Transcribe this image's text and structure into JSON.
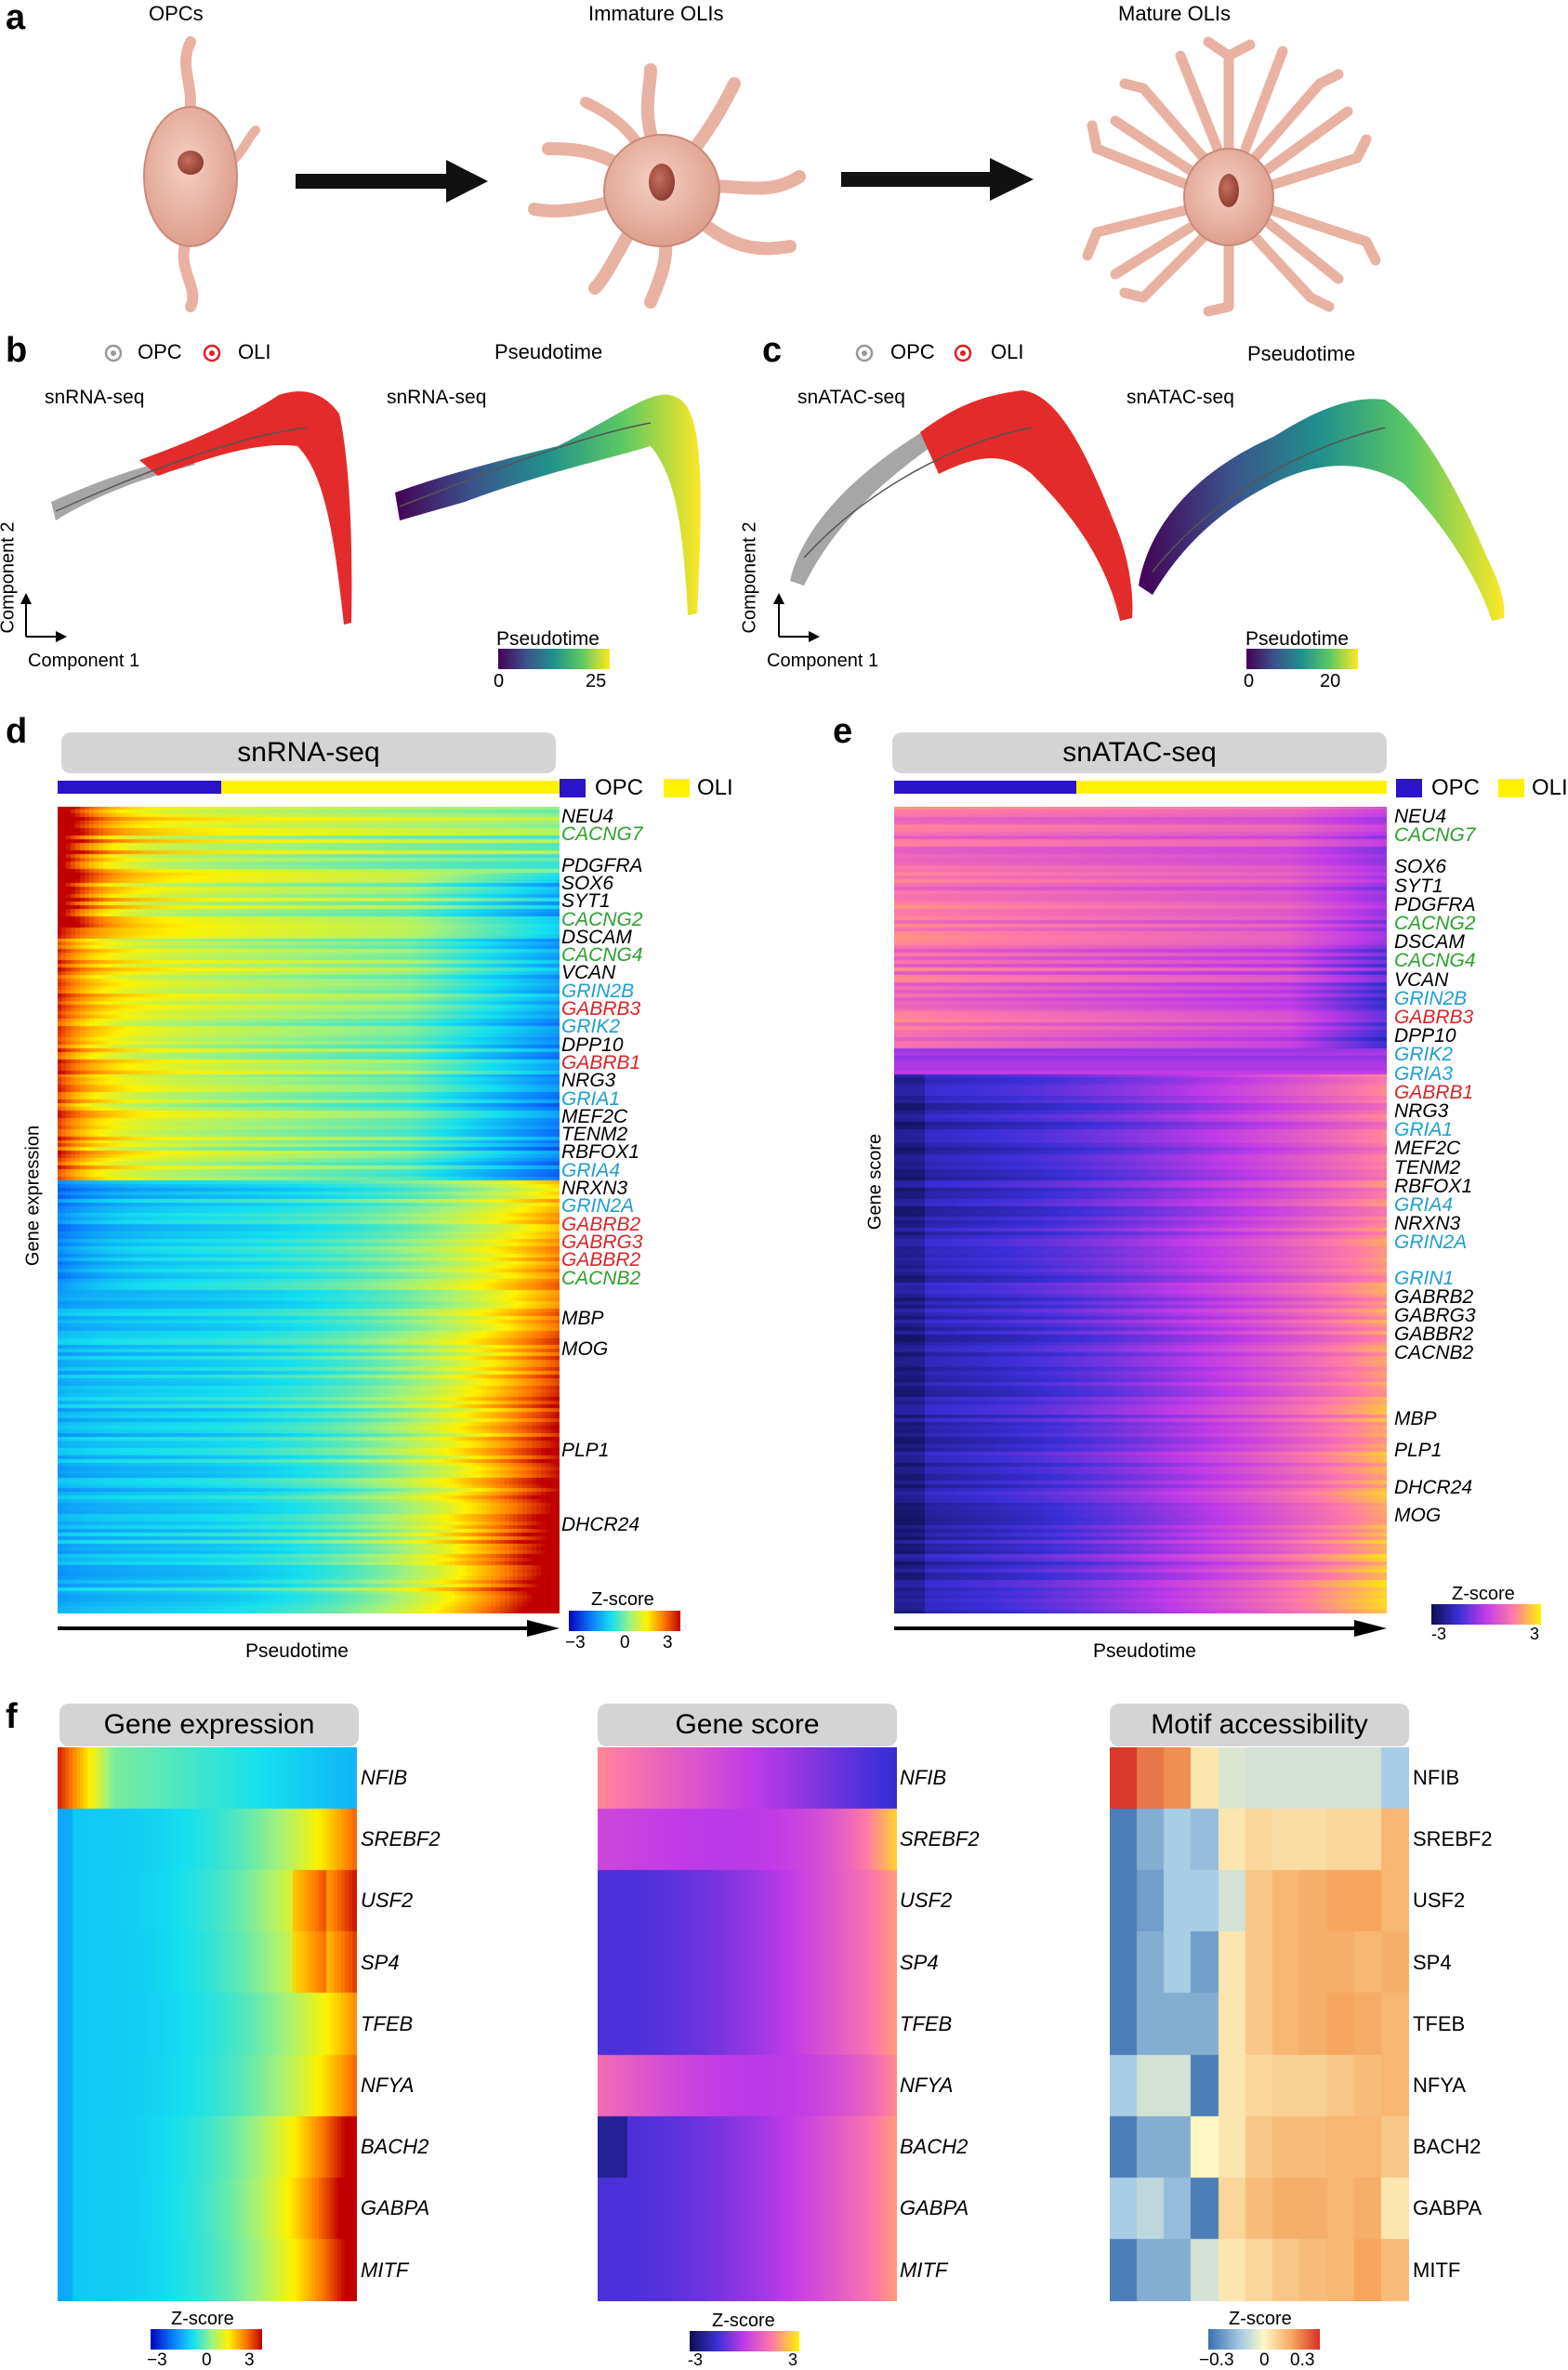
{
  "panel_a": {
    "label": "a",
    "stages": [
      "OPCs",
      "Immature OLIs",
      "Mature OLIs"
    ]
  },
  "panel_b": {
    "label": "b",
    "legend": {
      "opc": "OPC",
      "oli": "OLI"
    },
    "left_title": "snRNA-seq",
    "right_header": "Pseudotime",
    "right_title": "snRNA-seq",
    "axis_x": "Component 1",
    "axis_y": "Component 2",
    "colorbar": {
      "title": "Pseudotime",
      "min": "0",
      "max": "25"
    }
  },
  "panel_c": {
    "label": "c",
    "legend": {
      "opc": "OPC",
      "oli": "OLI"
    },
    "left_title": "snATAC-seq",
    "right_header": "Pseudotime",
    "right_title": "snATAC-seq",
    "axis_x": "Component 1",
    "axis_y": "Component 2",
    "colorbar": {
      "title": "Pseudotime",
      "min": "0",
      "max": "20"
    }
  },
  "panel_d": {
    "label": "d",
    "title": "snRNA-seq",
    "legend": {
      "opc": "OPC",
      "oli": "OLI"
    },
    "y_label": "Gene expression",
    "x_label": "Pseudotime",
    "colorbar": {
      "title": "Z-score",
      "min": "−3",
      "mid": "0",
      "max": "3"
    },
    "genes": [
      {
        "name": "NEU4",
        "color": "#000000"
      },
      {
        "name": "CACNG7",
        "color": "#2ca02c"
      },
      {
        "name": "PDGFRA",
        "color": "#000000"
      },
      {
        "name": "SOX6",
        "color": "#000000"
      },
      {
        "name": "SYT1",
        "color": "#000000"
      },
      {
        "name": "CACNG2",
        "color": "#2ca02c"
      },
      {
        "name": "DSCAM",
        "color": "#000000"
      },
      {
        "name": "CACNG4",
        "color": "#2ca02c"
      },
      {
        "name": "VCAN",
        "color": "#000000"
      },
      {
        "name": "GRIN2B",
        "color": "#1f9fd0"
      },
      {
        "name": "GABRB3",
        "color": "#d62728"
      },
      {
        "name": "GRIK2",
        "color": "#1f9fd0"
      },
      {
        "name": "DPP10",
        "color": "#000000"
      },
      {
        "name": "GABRB1",
        "color": "#d62728"
      },
      {
        "name": "NRG3",
        "color": "#000000"
      },
      {
        "name": "GRIA1",
        "color": "#1f9fd0"
      },
      {
        "name": "MEF2C",
        "color": "#000000"
      },
      {
        "name": "TENM2",
        "color": "#000000"
      },
      {
        "name": "RBFOX1",
        "color": "#000000"
      },
      {
        "name": "GRIA4",
        "color": "#1f9fd0"
      },
      {
        "name": "NRXN3",
        "color": "#000000"
      },
      {
        "name": "GRIN2A",
        "color": "#1f9fd0"
      },
      {
        "name": "GABRB2",
        "color": "#d62728"
      },
      {
        "name": "GABRG3",
        "color": "#d62728"
      },
      {
        "name": "GABBR2",
        "color": "#d62728"
      },
      {
        "name": "CACNB2",
        "color": "#2ca02c"
      },
      {
        "name": "MBP",
        "color": "#000000"
      },
      {
        "name": "MOG",
        "color": "#000000"
      },
      {
        "name": "PLP1",
        "color": "#000000"
      },
      {
        "name": "DHCR24",
        "color": "#000000"
      }
    ]
  },
  "panel_e": {
    "label": "e",
    "title": "snATAC-seq",
    "legend": {
      "opc": "OPC",
      "oli": "OLI"
    },
    "y_label": "Gene score",
    "x_label": "Pseudotime",
    "colorbar": {
      "title": "Z-score",
      "min": "-3",
      "max": "3"
    },
    "genes": [
      {
        "name": "NEU4",
        "color": "#000000"
      },
      {
        "name": "CACNG7",
        "color": "#2ca02c"
      },
      {
        "name": "SOX6",
        "color": "#000000"
      },
      {
        "name": "SYT1",
        "color": "#000000"
      },
      {
        "name": "PDGFRA",
        "color": "#000000"
      },
      {
        "name": "CACNG2",
        "color": "#2ca02c"
      },
      {
        "name": "DSCAM",
        "color": "#000000"
      },
      {
        "name": "CACNG4",
        "color": "#2ca02c"
      },
      {
        "name": "VCAN",
        "color": "#000000"
      },
      {
        "name": "GRIN2B",
        "color": "#1f9fd0"
      },
      {
        "name": "GABRB3",
        "color": "#d62728"
      },
      {
        "name": "DPP10",
        "color": "#000000"
      },
      {
        "name": "GRIK2",
        "color": "#1f9fd0"
      },
      {
        "name": "GRIA3",
        "color": "#1f9fd0"
      },
      {
        "name": "GABRB1",
        "color": "#d62728"
      },
      {
        "name": "NRG3",
        "color": "#000000"
      },
      {
        "name": "GRIA1",
        "color": "#1f9fd0"
      },
      {
        "name": "MEF2C",
        "color": "#000000"
      },
      {
        "name": "TENM2",
        "color": "#000000"
      },
      {
        "name": "RBFOX1",
        "color": "#000000"
      },
      {
        "name": "GRIA4",
        "color": "#1f9fd0"
      },
      {
        "name": "NRXN3",
        "color": "#000000"
      },
      {
        "name": "GRIN2A",
        "color": "#1f9fd0"
      },
      {
        "name": "GRIN1",
        "color": "#1f9fd0"
      },
      {
        "name": "GABRB2",
        "color": "#000000"
      },
      {
        "name": "GABRG3",
        "color": "#000000"
      },
      {
        "name": "GABBR2",
        "color": "#000000"
      },
      {
        "name": "CACNB2",
        "color": "#000000"
      },
      {
        "name": "MBP",
        "color": "#000000"
      },
      {
        "name": "PLP1",
        "color": "#000000"
      },
      {
        "name": "DHCR24",
        "color": "#000000"
      },
      {
        "name": "MOG",
        "color": "#000000"
      }
    ]
  },
  "panel_f": {
    "label": "f",
    "titles": [
      "Gene expression",
      "Gene score",
      "Motif accessibility"
    ],
    "tfs": [
      "NFIB",
      "SREBF2",
      "USF2",
      "SP4",
      "TFEB",
      "NFYA",
      "BACH2",
      "GABPA",
      "MITF"
    ],
    "colorbars": [
      {
        "title": "Z-score",
        "min": "−3",
        "mid": "0",
        "max": "3"
      },
      {
        "title": "Z-score",
        "min": "-3",
        "max": "3"
      },
      {
        "title": "Z-score",
        "min": "−0.3",
        "mid": "0",
        "max": "0.3"
      }
    ]
  }
}
